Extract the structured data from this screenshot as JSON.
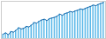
{
  "chart_data": {
    "type": "bar",
    "categories": [
      null,
      null,
      null,
      null,
      null,
      null,
      null,
      null,
      null,
      null,
      null,
      null,
      null,
      null,
      null,
      null,
      null,
      null,
      null,
      null,
      null,
      null,
      null,
      null,
      null,
      null,
      null,
      null,
      null,
      null,
      null,
      null,
      null,
      null,
      null,
      null,
      null,
      null,
      null,
      null
    ],
    "series": [
      {
        "type": "bar",
        "color": "#5bb8e8",
        "values": [
          200,
          210,
          195,
          220,
          215,
          230,
          250,
          240,
          245,
          260,
          255,
          270,
          290,
          285,
          300,
          310,
          315,
          305,
          320,
          325,
          330,
          340,
          355,
          345,
          360,
          365,
          375,
          370,
          380,
          385,
          395,
          390,
          400,
          408,
          415,
          425,
          420,
          430,
          438,
          445
        ]
      },
      {
        "type": "line",
        "color": "#1565a8",
        "values": [
          200,
          210,
          195,
          220,
          215,
          230,
          250,
          240,
          245,
          260,
          255,
          270,
          290,
          285,
          300,
          310,
          315,
          305,
          320,
          325,
          330,
          340,
          355,
          345,
          360,
          365,
          375,
          370,
          380,
          385,
          395,
          390,
          400,
          408,
          415,
          425,
          420,
          430,
          438,
          445
        ]
      }
    ],
    "ylim": [
      165.75,
      453.9
    ],
    "tick_labels": false,
    "grid": false
  }
}
